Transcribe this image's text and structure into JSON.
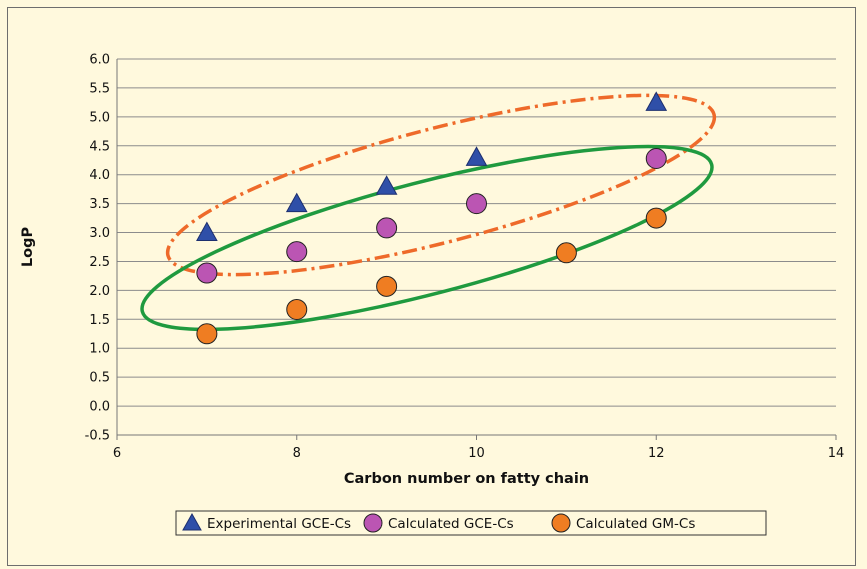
{
  "chart_data": {
    "type": "scatter",
    "title": "",
    "xlabel": "Carbon number on fatty chain",
    "ylabel": "LogP",
    "xlim": [
      6,
      14
    ],
    "ylim": [
      -0.5,
      6.0
    ],
    "x_ticks": [
      6,
      8,
      10,
      12,
      14
    ],
    "y_ticks": [
      "-0.5",
      "0.0",
      "0.5",
      "1.0",
      "1.5",
      "2.0",
      "2.5",
      "3.0",
      "3.5",
      "4.0",
      "4.5",
      "5.0",
      "5.5",
      "6.0"
    ],
    "grid": "horizontal",
    "legend_position": "bottom",
    "series": [
      {
        "name": "Experimental GCE-Cs",
        "marker": "triangle",
        "color": "#2f4fa8",
        "points": [
          {
            "x": 7,
            "y": 3.0
          },
          {
            "x": 8,
            "y": 3.5
          },
          {
            "x": 9,
            "y": 3.8
          },
          {
            "x": 10,
            "y": 4.3
          },
          {
            "x": 12,
            "y": 5.25
          }
        ]
      },
      {
        "name": "Calculated GCE-Cs",
        "marker": "circle",
        "color": "#bb55b3",
        "points": [
          {
            "x": 7,
            "y": 2.3
          },
          {
            "x": 8,
            "y": 2.67
          },
          {
            "x": 9,
            "y": 3.08
          },
          {
            "x": 10,
            "y": 3.5
          },
          {
            "x": 12,
            "y": 4.28
          }
        ]
      },
      {
        "name": "Calculated GM-Cs",
        "marker": "circle",
        "color": "#ef7d22",
        "points": [
          {
            "x": 7,
            "y": 1.25
          },
          {
            "x": 8,
            "y": 1.67
          },
          {
            "x": 9,
            "y": 2.07
          },
          {
            "x": 11,
            "y": 2.65
          },
          {
            "x": 12,
            "y": 3.25
          }
        ]
      }
    ],
    "annotations": [
      {
        "shape": "ellipse",
        "style": "dash-dot",
        "color": "#ee6a2a"
      },
      {
        "shape": "ellipse",
        "style": "solid",
        "color": "#1f9a3f"
      }
    ]
  }
}
